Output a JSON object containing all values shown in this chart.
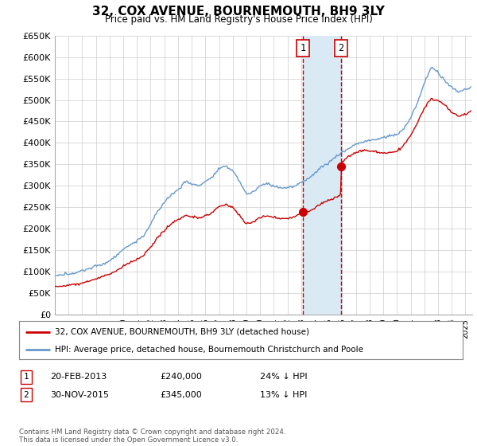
{
  "title": "32, COX AVENUE, BOURNEMOUTH, BH9 3LY",
  "subtitle": "Price paid vs. HM Land Registry's House Price Index (HPI)",
  "ylim": [
    0,
    650000
  ],
  "yticks": [
    0,
    50000,
    100000,
    150000,
    200000,
    250000,
    300000,
    350000,
    400000,
    450000,
    500000,
    550000,
    600000,
    650000
  ],
  "xlim_start": 1995.0,
  "xlim_end": 2025.5,
  "sale1_x": 2013.12,
  "sale1_y": 240000,
  "sale2_x": 2015.92,
  "sale2_y": 345000,
  "legend_line1": "32, COX AVENUE, BOURNEMOUTH, BH9 3LY (detached house)",
  "legend_line2": "HPI: Average price, detached house, Bournemouth Christchurch and Poole",
  "table_row1_label": "1",
  "table_row1_date": "20-FEB-2013",
  "table_row1_price": "£240,000",
  "table_row1_hpi": "24% ↓ HPI",
  "table_row2_label": "2",
  "table_row2_date": "30-NOV-2015",
  "table_row2_price": "£345,000",
  "table_row2_hpi": "13% ↓ HPI",
  "footer": "Contains HM Land Registry data © Crown copyright and database right 2024.\nThis data is licensed under the Open Government Licence v3.0.",
  "line_color_red": "#cc0000",
  "line_color_blue": "#6699cc",
  "shade_color": "#daeaf5",
  "vline_color": "#cc0000",
  "grid_color": "#cccccc",
  "background_color": "#ffffff"
}
